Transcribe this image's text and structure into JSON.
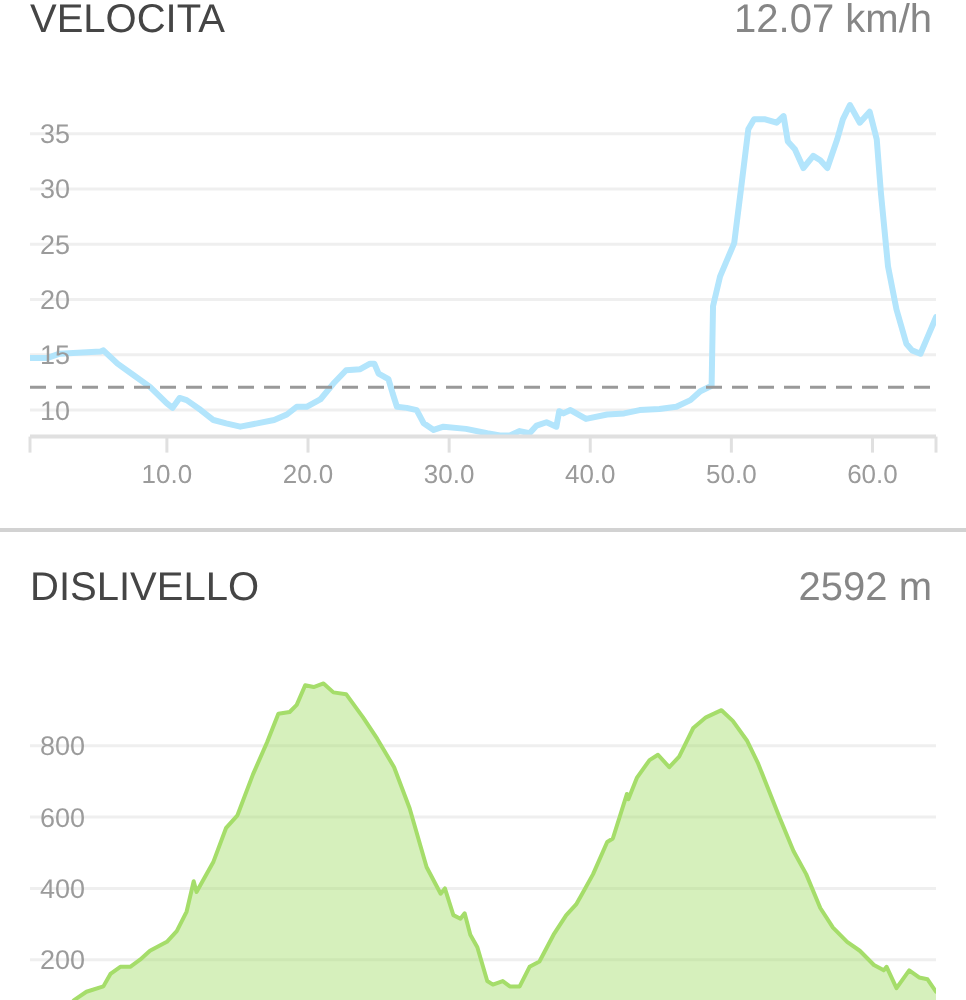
{
  "chart_data": [
    {
      "type": "line",
      "title": "VELOCITA",
      "subtitle": "12.07 km/h",
      "x": [
        0.3,
        1.5,
        2.4,
        5.3,
        5.5,
        6.5,
        7.6,
        8.8,
        10.0,
        10.4,
        10.9,
        11.4,
        12.4,
        13.3,
        14.2,
        15.2,
        16.4,
        17.6,
        18.5,
        19.2,
        19.9,
        20.9,
        21.8,
        22.7,
        23.7,
        24.4,
        24.7,
        25.0,
        25.7,
        26.0,
        26.3,
        27.0,
        27.7,
        28.2,
        28.9,
        29.6,
        31.2,
        32.7,
        33.6,
        34.3,
        35.0,
        35.7,
        36.2,
        36.9,
        37.6,
        37.8,
        38.1,
        38.6,
        39.7,
        41.2,
        42.4,
        43.5,
        44.9,
        46.1,
        47.1,
        47.8,
        48.6,
        48.7,
        49.2,
        49.8,
        50.2,
        50.7,
        51.2,
        51.6,
        52.4,
        53.2,
        53.7,
        54.0,
        54.5,
        55.1,
        55.8,
        56.3,
        56.8,
        57.5,
        57.9,
        58.4,
        59.1,
        59.8,
        60.3,
        60.6,
        61.1,
        61.7,
        62.4,
        62.8,
        63.4,
        63.9,
        64.5
      ],
      "series": [
        {
          "color": "#b3e5fc",
          "values": [
            14.7,
            14.7,
            15.1,
            15.3,
            15.4,
            14.2,
            13.2,
            12.1,
            10.6,
            10.2,
            11.1,
            10.9,
            10.0,
            9.1,
            8.8,
            8.5,
            8.8,
            9.1,
            9.6,
            10.3,
            10.3,
            11.0,
            12.4,
            13.6,
            13.7,
            14.2,
            14.2,
            13.3,
            12.8,
            11.5,
            10.3,
            10.2,
            10.0,
            8.8,
            8.2,
            8.5,
            8.3,
            7.9,
            7.7,
            7.7,
            8.1,
            7.9,
            8.6,
            8.9,
            8.5,
            9.9,
            9.7,
            10.0,
            9.2,
            9.6,
            9.7,
            10.0,
            10.1,
            10.3,
            10.9,
            11.7,
            12.2,
            19.4,
            22.1,
            23.9,
            25.1,
            30.2,
            35.4,
            36.3,
            36.3,
            36.0,
            36.6,
            34.3,
            33.6,
            31.9,
            33.0,
            32.6,
            31.9,
            34.5,
            36.3,
            37.6,
            36.0,
            37.0,
            34.5,
            29.6,
            23.0,
            19.1,
            16.0,
            15.4,
            15.1,
            16.6,
            18.4
          ]
        }
      ],
      "xlim": [
        0.3,
        64.5
      ],
      "ylim": [
        7.6,
        47.1
      ],
      "xticks": [
        {
          "value": 0.3,
          "label": null
        },
        {
          "value": 10,
          "label": "10.0"
        },
        {
          "value": 20,
          "label": "20.0"
        },
        {
          "value": 30,
          "label": "30.0"
        },
        {
          "value": 40,
          "label": "40.0"
        },
        {
          "value": 50,
          "label": "50.0"
        },
        {
          "value": 60,
          "label": "60.0"
        },
        {
          "value": 64.5,
          "label": null
        }
      ],
      "yticks": [
        10,
        15,
        20,
        25,
        30,
        35
      ],
      "grid": "y",
      "ref_lines": [
        {
          "axis": "y",
          "value": 12.07,
          "color": "#999999",
          "line_style": "dashed"
        }
      ]
    },
    {
      "type": "area",
      "title": "DISLIVELLO",
      "subtitle": "2592 m",
      "x": [
        3.4,
        4.3,
        5.5,
        6.0,
        6.7,
        7.4,
        8.1,
        8.8,
        10.0,
        10.7,
        11.4,
        11.9,
        12.1,
        13.3,
        14.2,
        15.0,
        16.1,
        17.1,
        17.9,
        18.7,
        19.2,
        19.8,
        20.4,
        21.1,
        21.8,
        22.7,
        23.9,
        24.9,
        26.1,
        27.2,
        28.4,
        29.4,
        29.7,
        30.3,
        30.8,
        31.1,
        31.5,
        32.0,
        32.7,
        33.1,
        33.8,
        34.3,
        35.0,
        35.7,
        36.4,
        37.4,
        38.3,
        39.0,
        39.5,
        40.2,
        41.2,
        41.6,
        42.6,
        42.7,
        43.3,
        44.2,
        44.8,
        45.6,
        46.3,
        47.3,
        48.2,
        49.3,
        50.1,
        51.1,
        51.9,
        52.5,
        53.4,
        54.4,
        55.3,
        56.3,
        57.2,
        58.2,
        59.1,
        60.1,
        60.8,
        61.0,
        61.7,
        62.6,
        63.3,
        63.9,
        64.5
      ],
      "series": [
        {
          "color": "#a5dd6a",
          "values": [
            86,
            110,
            125,
            160,
            180,
            180,
            200,
            225,
            250,
            280,
            335,
            420,
            390,
            475,
            570,
            605,
            720,
            810,
            890,
            895,
            915,
            970,
            965,
            975,
            950,
            945,
            880,
            820,
            740,
            625,
            460,
            385,
            400,
            325,
            315,
            330,
            270,
            235,
            140,
            130,
            140,
            125,
            125,
            180,
            195,
            270,
            325,
            355,
            390,
            440,
            530,
            540,
            665,
            650,
            710,
            760,
            775,
            740,
            770,
            850,
            880,
            900,
            870,
            815,
            750,
            690,
            600,
            505,
            440,
            345,
            290,
            250,
            225,
            185,
            170,
            180,
            120,
            170,
            150,
            145,
            110
          ]
        }
      ],
      "xlim": [
        0.3,
        64.5
      ],
      "ylim": [
        84,
        1400
      ],
      "yticks": [
        200,
        400,
        600,
        800
      ],
      "grid": "y",
      "tick_labels": "y"
    }
  ]
}
